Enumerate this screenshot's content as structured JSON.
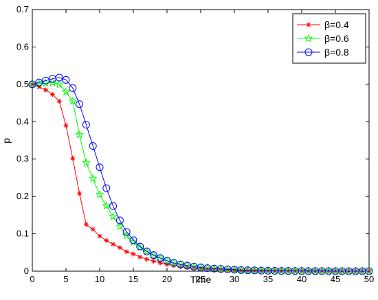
{
  "chart_data": {
    "type": "line",
    "title": "",
    "xlabel": "Time",
    "ylabel": "p",
    "xlim": [
      0,
      50
    ],
    "ylim": [
      0,
      0.7
    ],
    "xticks": [
      0,
      5,
      10,
      15,
      20,
      25,
      30,
      35,
      40,
      45,
      50
    ],
    "yticks": [
      0,
      0.1,
      0.2,
      0.3,
      0.4,
      0.5,
      0.6,
      0.7
    ],
    "grid": false,
    "legend_position": "top-right",
    "x": [
      0,
      1,
      2,
      3,
      4,
      5,
      6,
      7,
      8,
      9,
      10,
      11,
      12,
      13,
      14,
      15,
      16,
      17,
      18,
      19,
      20,
      21,
      22,
      23,
      24,
      25,
      26,
      27,
      28,
      29,
      30,
      31,
      32,
      33,
      34,
      35,
      36,
      37,
      38,
      39,
      40,
      41,
      42,
      43,
      44,
      45,
      46,
      47,
      48,
      49,
      50
    ],
    "series": [
      {
        "name": "β=0.4",
        "color": "#ff0000",
        "marker": "asterisk",
        "values": [
          0.5,
          0.493,
          0.485,
          0.473,
          0.455,
          0.39,
          0.302,
          0.208,
          0.125,
          0.112,
          0.094,
          0.082,
          0.072,
          0.063,
          0.052,
          0.046,
          0.038,
          0.032,
          0.027,
          0.022,
          0.018,
          0.015,
          0.012,
          0.01,
          0.008,
          0.007,
          0.005,
          0.004,
          0.0035,
          0.003,
          0.0025,
          0.002,
          0.0015,
          0.0012,
          0.001,
          0.001,
          0.0008,
          0.0006,
          0.0005,
          0.0004,
          0.0003,
          0.0003,
          0.0002,
          0.0002,
          0.0001,
          0.0001,
          0.0001,
          0,
          0,
          0,
          0
        ]
      },
      {
        "name": "β=0.6",
        "color": "#00ff00",
        "marker": "star",
        "values": [
          0.5,
          0.502,
          0.503,
          0.505,
          0.5,
          0.48,
          0.455,
          0.365,
          0.29,
          0.248,
          0.205,
          0.175,
          0.146,
          0.12,
          0.095,
          0.078,
          0.064,
          0.052,
          0.042,
          0.035,
          0.028,
          0.022,
          0.018,
          0.015,
          0.012,
          0.01,
          0.008,
          0.007,
          0.006,
          0.005,
          0.004,
          0.003,
          0.0025,
          0.002,
          0.0015,
          0.0012,
          0.001,
          0.0008,
          0.0006,
          0.0005,
          0.0004,
          0.0003,
          0.0003,
          0.0002,
          0.0002,
          0.0001,
          0.0001,
          0.0001,
          0,
          0,
          0
        ]
      },
      {
        "name": "β=0.8",
        "color": "#0000ff",
        "marker": "circle",
        "values": [
          0.5,
          0.505,
          0.51,
          0.515,
          0.518,
          0.512,
          0.49,
          0.447,
          0.392,
          0.335,
          0.278,
          0.222,
          0.174,
          0.136,
          0.105,
          0.083,
          0.066,
          0.053,
          0.043,
          0.035,
          0.028,
          0.022,
          0.018,
          0.015,
          0.012,
          0.01,
          0.008,
          0.007,
          0.006,
          0.005,
          0.004,
          0.003,
          0.0025,
          0.002,
          0.0015,
          0.0012,
          0.001,
          0.0008,
          0.0006,
          0.0005,
          0.0004,
          0.0003,
          0.0003,
          0.0002,
          0.0002,
          0.0001,
          0.0001,
          0.0001,
          0,
          0,
          0
        ]
      }
    ]
  }
}
